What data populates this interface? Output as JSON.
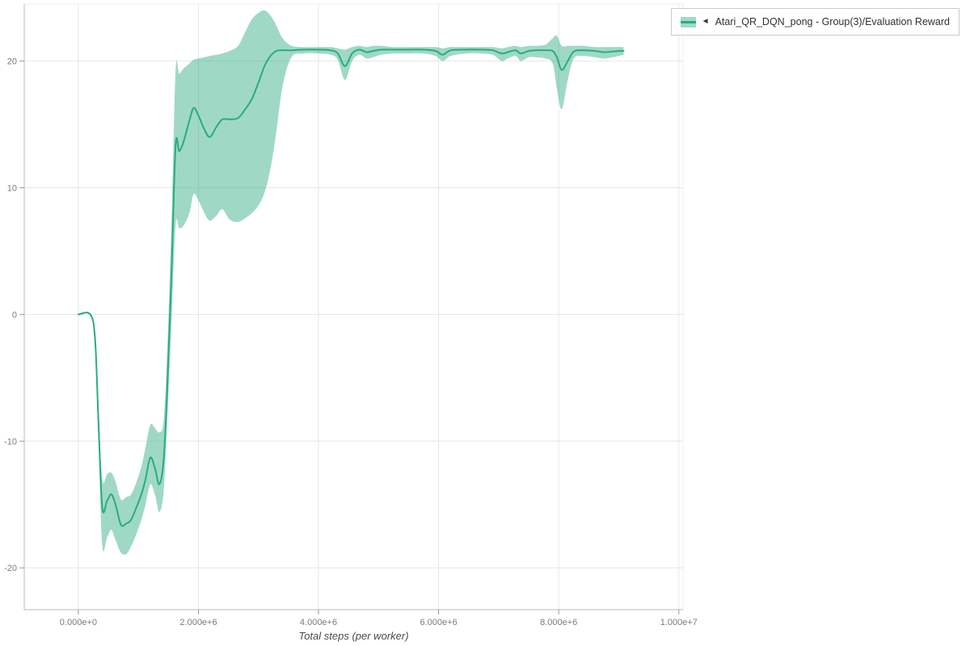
{
  "figure": {
    "background": "#ffffff",
    "grid_color": "#e6e6e6",
    "outline_color": "#ececec",
    "axis_color": "#bbbbbb",
    "tick_mark_color": "#9a9a9a",
    "tick_label_color": "#7a7a7a",
    "axis_title_color": "#4a4a4a"
  },
  "legend": {
    "marker": "◄",
    "label": "Atari_QR_DQN_pong - Group(3)/Evaluation Reward",
    "line_color": "#2aab80",
    "band_color": "#9fdac8"
  },
  "chart_data": {
    "type": "line",
    "title": "",
    "xlabel": "Total steps (per worker)",
    "ylabel": "",
    "grid": true,
    "legend_position": "top-right-outside",
    "xlim": [
      -900000,
      10070000
    ],
    "ylim": [
      -23.3,
      24.5
    ],
    "x_ticks": [
      {
        "value": 0,
        "label": "0.000e+0"
      },
      {
        "value": 2000000,
        "label": "2.000e+6"
      },
      {
        "value": 4000000,
        "label": "4.000e+6"
      },
      {
        "value": 6000000,
        "label": "6.000e+6"
      },
      {
        "value": 8000000,
        "label": "8.000e+6"
      },
      {
        "value": 10000000,
        "label": "1.000e+7"
      }
    ],
    "y_ticks": [
      {
        "value": -20,
        "label": "-20"
      },
      {
        "value": -10,
        "label": "-10"
      },
      {
        "value": 0,
        "label": "0"
      },
      {
        "value": 10,
        "label": "10"
      },
      {
        "value": 20,
        "label": "20"
      }
    ],
    "series": [
      {
        "name": "Atari_QR_DQN_pong - Group(3)/Evaluation Reward",
        "color": "#2aab80",
        "band_opacity": 0.45,
        "line_width": 2,
        "x": [
          0,
          200000,
          280000,
          340000,
          400000,
          480000,
          550000,
          620000,
          710000,
          800000,
          880000,
          970000,
          1050000,
          1120000,
          1200000,
          1280000,
          1350000,
          1420000,
          1480000,
          1550000,
          1620000,
          1680000,
          1750000,
          1850000,
          1920000,
          2000000,
          2100000,
          2190000,
          2300000,
          2400000,
          2520000,
          2660000,
          2780000,
          2890000,
          3000000,
          3100000,
          3200000,
          3300000,
          3400000,
          3550000,
          3750000,
          4000000,
          4200000,
          4320000,
          4440000,
          4560000,
          4680000,
          4800000,
          4910000,
          5050000,
          5250000,
          5500000,
          5750000,
          5950000,
          6070000,
          6200000,
          6450000,
          6700000,
          6900000,
          7050000,
          7150000,
          7280000,
          7370000,
          7500000,
          7620000,
          7780000,
          7900000,
          7970000,
          8050000,
          8150000,
          8250000,
          8400000,
          8600000,
          8750000,
          8900000,
          9000000,
          9080000
        ],
        "mean": [
          0,
          0,
          -2,
          -9,
          -15.3,
          -14.7,
          -14.2,
          -15,
          -16.6,
          -16.5,
          -16.2,
          -15.2,
          -14.2,
          -13,
          -11.3,
          -12.2,
          -13.4,
          -11.5,
          -6,
          3,
          13.3,
          12.9,
          13.6,
          15.3,
          16.3,
          15.7,
          14.6,
          14,
          14.8,
          15.4,
          15.4,
          15.5,
          16.2,
          17,
          18.3,
          19.6,
          20.4,
          20.8,
          20.85,
          20.85,
          20.9,
          20.9,
          20.85,
          20.6,
          19.6,
          20.6,
          20.9,
          20.7,
          20.8,
          20.9,
          20.9,
          20.9,
          20.9,
          20.8,
          20.5,
          20.85,
          20.9,
          20.9,
          20.85,
          20.6,
          20.7,
          20.85,
          20.6,
          20.8,
          20.85,
          20.85,
          20.8,
          20.3,
          19.3,
          20,
          20.75,
          20.85,
          20.8,
          20.7,
          20.75,
          20.8,
          20.8
        ],
        "lower": [
          0,
          0,
          -2.5,
          -10.5,
          -18.3,
          -17.6,
          -17,
          -17.8,
          -18.8,
          -18.9,
          -18.3,
          -17.3,
          -16.2,
          -15,
          -13.4,
          -14.3,
          -15.6,
          -14,
          -8.5,
          -1,
          7,
          6.8,
          7,
          8,
          9.5,
          9,
          8,
          7.4,
          7.8,
          8.3,
          7.5,
          7.3,
          7.6,
          8,
          8.6,
          9.6,
          11.5,
          14.5,
          18,
          20.3,
          20.6,
          20.6,
          20.5,
          20.1,
          18.5,
          20,
          20.5,
          20.2,
          20.3,
          20.5,
          20.6,
          20.6,
          20.6,
          20.4,
          20,
          20.4,
          20.6,
          20.6,
          20.5,
          20,
          20.2,
          20.4,
          20,
          20.3,
          20.3,
          20.2,
          19.8,
          17.8,
          16.2,
          18.5,
          20.2,
          20.4,
          20.3,
          20.2,
          20.3,
          20.4,
          20.5
        ],
        "upper": [
          0,
          0,
          -1.5,
          -7.5,
          -13,
          -12.6,
          -12.5,
          -13.2,
          -14.6,
          -14.4,
          -14.2,
          -13.2,
          -12,
          -10.5,
          -8.7,
          -9,
          -9.3,
          -8.4,
          -3,
          7,
          19.2,
          19,
          19.4,
          19.8,
          20.1,
          20.2,
          20.3,
          20.4,
          20.5,
          20.6,
          20.8,
          21.2,
          22.3,
          23.3,
          23.8,
          24,
          23.6,
          22.8,
          21.8,
          21.2,
          21.1,
          21.1,
          21.1,
          21,
          20.9,
          21.1,
          21.2,
          21.1,
          21.2,
          21.2,
          21.1,
          21.1,
          21.1,
          21.1,
          21,
          21.1,
          21.1,
          21.1,
          21.1,
          21,
          21.1,
          21.2,
          21.1,
          21.2,
          21.2,
          21.3,
          21.8,
          22,
          21.2,
          21.2,
          21.2,
          21.2,
          21.1,
          21.1,
          21.1,
          21.1,
          21.1
        ]
      }
    ]
  }
}
